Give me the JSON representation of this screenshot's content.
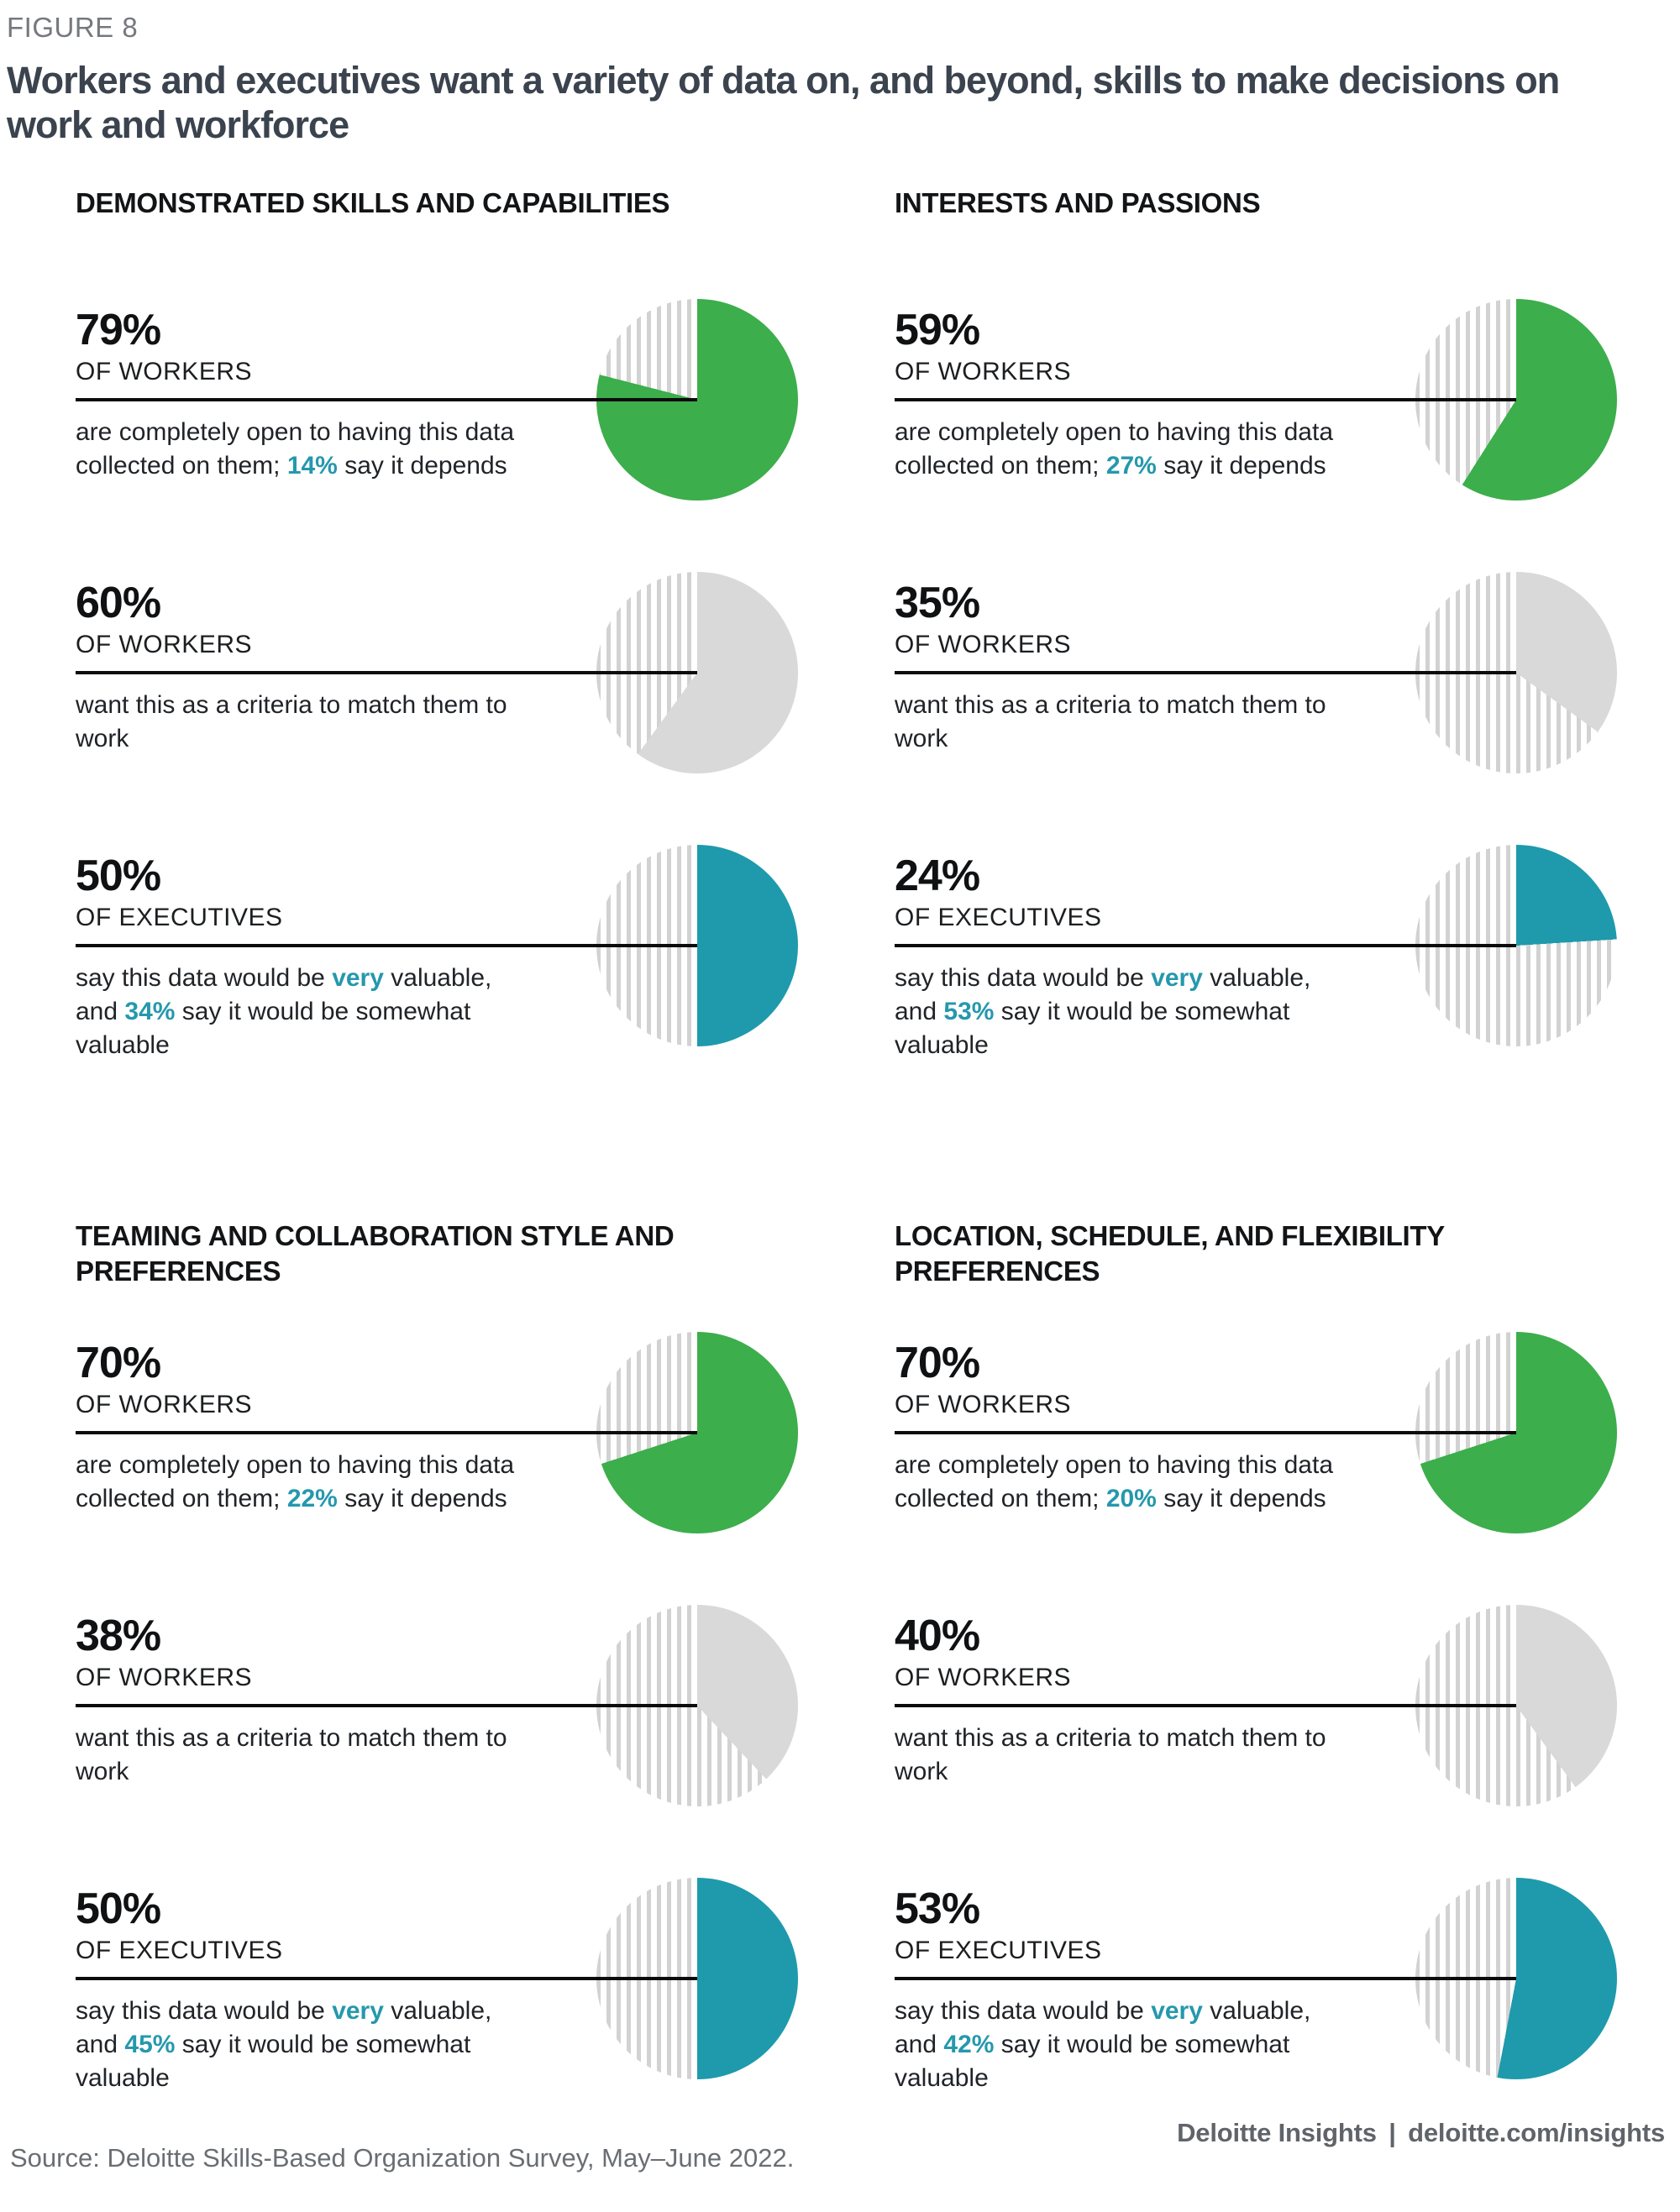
{
  "figure_label": "FIGURE 8",
  "title": "Workers and executives want a variety of data on, and beyond, skills to make decisions on work and workforce",
  "source": "Source: Deloitte Skills-Based Organization Survey, May–June 2022.",
  "footer": {
    "brand": "Deloitte Insights",
    "separator": "|",
    "url": "deloitte.com/insights"
  },
  "colors": {
    "green": "#3cae4b",
    "teal": "#1e9aac",
    "gray": "#d9d9d9",
    "hatch_line": "#d2d2d2",
    "accent_text": "#2598ad"
  },
  "chart_data": [
    {
      "type": "pie",
      "section": "DEMONSTRATED SKILLS AND CAPABILITIES",
      "pies": [
        {
          "value": 79,
          "value_label": "79%",
          "audience": "OF WORKERS",
          "color": "green",
          "secondary_value": 14,
          "remainder_style": "hatched",
          "desc": [
            {
              "t": "are completely open to having this data collected on them; "
            },
            {
              "t": "14%",
              "accent": true
            },
            {
              "t": " say it depends"
            }
          ]
        },
        {
          "value": 60,
          "value_label": "60%",
          "audience": "OF WORKERS",
          "color": "gray",
          "remainder_style": "hatched",
          "desc": [
            {
              "t": "want this as a criteria to match them to work"
            }
          ]
        },
        {
          "value": 50,
          "value_label": "50%",
          "audience": "OF EXECUTIVES",
          "color": "teal",
          "secondary_value": 34,
          "remainder_style": "hatched",
          "desc": [
            {
              "t": "say this data would be "
            },
            {
              "t": "very",
              "accent": true
            },
            {
              "t": " valuable, and "
            },
            {
              "t": "34%",
              "accent": true
            },
            {
              "t": " say it would be somewhat valuable"
            }
          ]
        }
      ]
    },
    {
      "type": "pie",
      "section": "INTERESTS AND PASSIONS",
      "pies": [
        {
          "value": 59,
          "value_label": "59%",
          "audience": "OF WORKERS",
          "color": "green",
          "secondary_value": 27,
          "remainder_style": "hatched",
          "desc": [
            {
              "t": "are completely open to having this data collected on them; "
            },
            {
              "t": "27%",
              "accent": true
            },
            {
              "t": " say it depends"
            }
          ]
        },
        {
          "value": 35,
          "value_label": "35%",
          "audience": "OF WORKERS",
          "color": "gray",
          "remainder_style": "hatched",
          "desc": [
            {
              "t": "want this as a criteria to match them to work"
            }
          ]
        },
        {
          "value": 24,
          "value_label": "24%",
          "audience": "OF EXECUTIVES",
          "color": "teal",
          "secondary_value": 53,
          "remainder_style": "hatched",
          "desc": [
            {
              "t": "say this data would be "
            },
            {
              "t": "very",
              "accent": true
            },
            {
              "t": " valuable, and "
            },
            {
              "t": "53%",
              "accent": true
            },
            {
              "t": " say it would be somewhat valuable"
            }
          ]
        }
      ]
    },
    {
      "type": "pie",
      "section": "TEAMING AND COLLABORATION STYLE AND PREFERENCES",
      "pies": [
        {
          "value": 70,
          "value_label": "70%",
          "audience": "OF WORKERS",
          "color": "green",
          "secondary_value": 22,
          "remainder_style": "hatched",
          "desc": [
            {
              "t": "are completely open to having this data collected on them; "
            },
            {
              "t": "22%",
              "accent": true
            },
            {
              "t": " say it depends"
            }
          ]
        },
        {
          "value": 38,
          "value_label": "38%",
          "audience": "OF WORKERS",
          "color": "gray",
          "remainder_style": "hatched",
          "desc": [
            {
              "t": "want this as a criteria to match them to work"
            }
          ]
        },
        {
          "value": 50,
          "value_label": "50%",
          "audience": "OF EXECUTIVES",
          "color": "teal",
          "secondary_value": 45,
          "remainder_style": "hatched",
          "desc": [
            {
              "t": "say this data would be "
            },
            {
              "t": "very",
              "accent": true
            },
            {
              "t": " valuable, and "
            },
            {
              "t": "45%",
              "accent": true
            },
            {
              "t": " say it would be somewhat valuable"
            }
          ]
        }
      ]
    },
    {
      "type": "pie",
      "section": "LOCATION, SCHEDULE, AND FLEXIBILITY PREFERENCES",
      "pies": [
        {
          "value": 70,
          "value_label": "70%",
          "audience": "OF WORKERS",
          "color": "green",
          "secondary_value": 20,
          "remainder_style": "hatched",
          "desc": [
            {
              "t": "are completely open to having this data collected on them; "
            },
            {
              "t": "20%",
              "accent": true
            },
            {
              "t": " say it depends"
            }
          ]
        },
        {
          "value": 40,
          "value_label": "40%",
          "audience": "OF WORKERS",
          "color": "gray",
          "remainder_style": "hatched",
          "desc": [
            {
              "t": "want this as a criteria to match them to work"
            }
          ]
        },
        {
          "value": 53,
          "value_label": "53%",
          "audience": "OF EXECUTIVES",
          "color": "teal",
          "secondary_value": 42,
          "remainder_style": "hatched",
          "desc": [
            {
              "t": "say this data would be "
            },
            {
              "t": "very",
              "accent": true
            },
            {
              "t": " valuable, and "
            },
            {
              "t": "42%",
              "accent": true
            },
            {
              "t": " say it would be somewhat valuable"
            }
          ]
        }
      ]
    }
  ]
}
